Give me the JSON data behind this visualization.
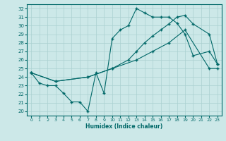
{
  "xlabel": "Humidex (Indice chaleur)",
  "xlim": [
    -0.5,
    23.5
  ],
  "ylim": [
    19.5,
    32.5
  ],
  "xticks": [
    0,
    1,
    2,
    3,
    4,
    5,
    6,
    7,
    8,
    9,
    10,
    11,
    12,
    13,
    14,
    15,
    16,
    17,
    18,
    19,
    20,
    21,
    22,
    23
  ],
  "yticks": [
    20,
    21,
    22,
    23,
    24,
    25,
    26,
    27,
    28,
    29,
    30,
    31,
    32
  ],
  "bg_color": "#cce8e8",
  "grid_color": "#aad0d0",
  "line_color": "#006868",
  "curve1_x": [
    0,
    1,
    2,
    3,
    4,
    5,
    6,
    7,
    8,
    9,
    10,
    11,
    12,
    13,
    14,
    15,
    16,
    17,
    18,
    19,
    20,
    22,
    23
  ],
  "curve1_y": [
    24.5,
    23.3,
    23.0,
    23.0,
    22.1,
    21.1,
    21.1,
    20.0,
    24.5,
    22.1,
    28.5,
    29.5,
    30.0,
    32.0,
    31.5,
    31.0,
    31.0,
    31.0,
    30.3,
    29.0,
    26.5,
    27.0,
    25.5
  ],
  "curve2_x": [
    0,
    3,
    7,
    10,
    12,
    13,
    14,
    15,
    16,
    17,
    18,
    19,
    20,
    22,
    23
  ],
  "curve2_y": [
    24.5,
    23.5,
    24.0,
    25.0,
    26.0,
    27.0,
    28.0,
    28.8,
    29.5,
    30.2,
    31.0,
    31.2,
    30.2,
    29.0,
    25.5
  ],
  "curve3_x": [
    0,
    3,
    7,
    10,
    13,
    15,
    17,
    19,
    22,
    23
  ],
  "curve3_y": [
    24.5,
    23.5,
    24.0,
    25.0,
    26.0,
    27.0,
    28.0,
    29.5,
    25.0,
    25.0
  ]
}
